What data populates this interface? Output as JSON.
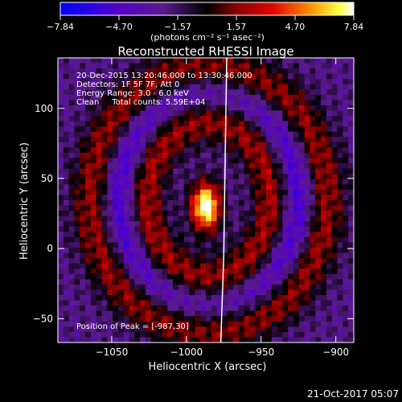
{
  "colorbar": {
    "tick_labels": [
      "−7.84",
      "−4.70",
      "−1.57",
      "1.57",
      "4.70",
      "7.84"
    ],
    "units_label": "(photons cm⁻² s⁻¹ asec⁻²)",
    "range": [
      -7.84,
      7.84
    ]
  },
  "chart_data": {
    "type": "heatmap",
    "title": "Reconstructed RHESSI Image",
    "xlabel": "Heliocentric X (arcsec)",
    "ylabel": "Heliocentric Y (arcsec)",
    "xlim": [
      -1086,
      -888
    ],
    "ylim": [
      -67,
      136
    ],
    "x_ticks": [
      -1050,
      -1000,
      -950,
      -900
    ],
    "x_tick_labels": [
      "−1050",
      "−1000",
      "−950",
      "−900"
    ],
    "y_ticks": [
      -50,
      0,
      50,
      100
    ],
    "y_tick_labels": [
      "−50",
      "0",
      "50",
      "100"
    ],
    "annotations": [
      "20-Dec-2015 13:20:46.000 to 13:30:46.000",
      "Detectors: 1F 5F 7F, Att 0",
      "Energy Range: 3.0 - 6.0 keV",
      "Clean     Total counts: 5.59E+04"
    ],
    "peak_label": "Position of Peak = [-987,30]",
    "peak": {
      "x": -987,
      "y": 30,
      "value": 7.84
    },
    "limb_line": [
      [
        -973,
        136
      ],
      [
        -974,
        70
      ],
      [
        -975,
        -5
      ],
      [
        -977,
        -67
      ]
    ],
    "image_model": {
      "grid": [
        54,
        54
      ],
      "components": [
        {
          "type": "gaussian",
          "x": -987,
          "y": 30,
          "sx": 7,
          "sy": 12,
          "amp": 11
        },
        {
          "type": "ring",
          "x": -985,
          "y": 35,
          "rx": 42,
          "ry": 58,
          "width": 9,
          "amp": 4.5
        },
        {
          "type": "ring",
          "x": -985,
          "y": 35,
          "rx": 78,
          "ry": 92,
          "width": 10,
          "amp": 4.2
        },
        {
          "type": "ring",
          "x": -985,
          "y": 35,
          "rx": 60,
          "ry": 75,
          "width": 8,
          "amp": -4.0
        }
      ]
    }
  },
  "timestamp": "21-Oct-2017 05:07"
}
